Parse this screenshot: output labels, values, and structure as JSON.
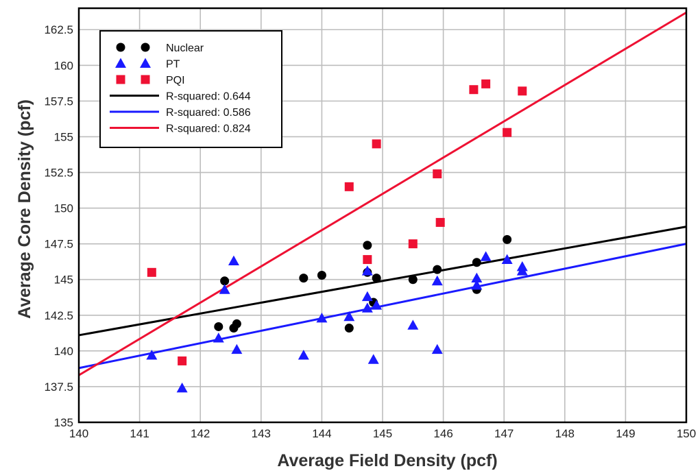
{
  "chart_data": {
    "type": "scatter",
    "title": "",
    "xlabel": "Average Field Density (pcf)",
    "ylabel": "Average Core Density (pcf)",
    "xlim": [
      140,
      150
    ],
    "ylim": [
      135,
      164
    ],
    "x_ticks": [
      "140",
      "141",
      "142",
      "143",
      "144",
      "145",
      "146",
      "147",
      "148",
      "149",
      "150"
    ],
    "y_ticks": [
      "135",
      "137.5",
      "140",
      "142.5",
      "145",
      "147.5",
      "150",
      "152.5",
      "155",
      "157.5",
      "160",
      "162.5"
    ],
    "grid": true,
    "legend_placement": "top-left",
    "series": [
      {
        "name": "Nuclear",
        "marker": "circle",
        "color": "#000000",
        "points": [
          [
            142.3,
            141.7
          ],
          [
            142.4,
            144.9
          ],
          [
            142.55,
            141.6
          ],
          [
            142.6,
            141.9
          ],
          [
            143.7,
            145.1
          ],
          [
            144.0,
            145.3
          ],
          [
            144.45,
            141.6
          ],
          [
            144.75,
            147.4
          ],
          [
            144.75,
            145.5
          ],
          [
            144.85,
            143.4
          ],
          [
            144.9,
            145.1
          ],
          [
            145.5,
            145.0
          ],
          [
            145.9,
            145.7
          ],
          [
            146.55,
            146.2
          ],
          [
            146.55,
            144.3
          ],
          [
            147.05,
            147.8
          ]
        ]
      },
      {
        "name": "PT",
        "marker": "triangle",
        "color": "#1a1aff",
        "points": [
          [
            141.2,
            139.7
          ],
          [
            141.7,
            137.4
          ],
          [
            142.3,
            140.9
          ],
          [
            142.4,
            144.3
          ],
          [
            142.55,
            146.3
          ],
          [
            142.6,
            140.1
          ],
          [
            143.7,
            139.7
          ],
          [
            144.0,
            142.3
          ],
          [
            144.45,
            142.4
          ],
          [
            144.75,
            145.6
          ],
          [
            144.75,
            143.8
          ],
          [
            144.75,
            143.0
          ],
          [
            144.85,
            139.4
          ],
          [
            144.9,
            143.2
          ],
          [
            145.5,
            141.8
          ],
          [
            145.9,
            144.9
          ],
          [
            145.9,
            140.1
          ],
          [
            146.55,
            145.1
          ],
          [
            146.55,
            144.6
          ],
          [
            146.7,
            146.6
          ],
          [
            147.05,
            146.4
          ],
          [
            147.3,
            145.9
          ],
          [
            147.3,
            145.6
          ]
        ]
      },
      {
        "name": "PQI",
        "marker": "square",
        "color": "#ee1133",
        "points": [
          [
            141.2,
            145.5
          ],
          [
            141.7,
            139.3
          ],
          [
            144.45,
            151.5
          ],
          [
            144.75,
            146.4
          ],
          [
            144.9,
            154.5
          ],
          [
            145.5,
            147.5
          ],
          [
            145.9,
            152.4
          ],
          [
            145.95,
            149.0
          ],
          [
            146.5,
            158.3
          ],
          [
            146.7,
            158.7
          ],
          [
            147.05,
            155.3
          ],
          [
            147.3,
            158.2
          ]
        ]
      }
    ],
    "trendlines": [
      {
        "label": "R-squared: 0.644",
        "color": "#000000",
        "start": [
          140,
          141.1
        ],
        "end": [
          150,
          148.7
        ]
      },
      {
        "label": "R-squared: 0.586",
        "color": "#1a1aff",
        "start": [
          140,
          138.8
        ],
        "end": [
          150,
          147.5
        ]
      },
      {
        "label": "R-squared: 0.824",
        "color": "#ee1133",
        "start": [
          140,
          138.3
        ],
        "end": [
          150,
          163.7
        ]
      }
    ]
  }
}
